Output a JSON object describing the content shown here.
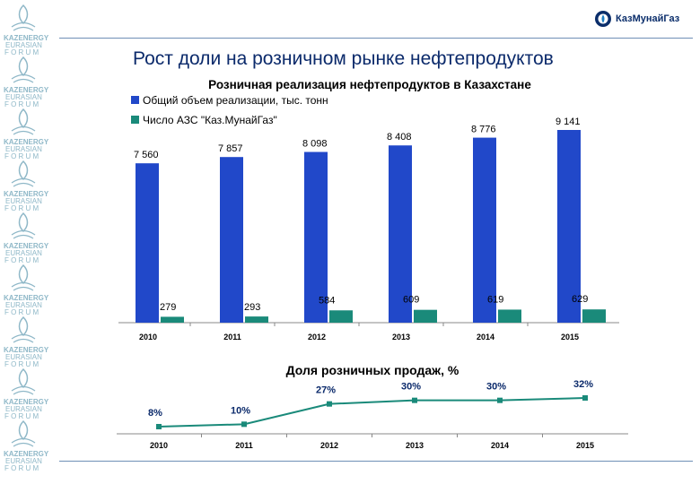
{
  "page": {
    "title": "Рост доли на розничном рынке нефтепродуктов",
    "logo_text": "КазМунайГаз",
    "sidebar_brand": [
      "KAZENERGY",
      "EURASIAN",
      "F O R U M"
    ]
  },
  "colors": {
    "bar_primary": "#2148c9",
    "bar_secondary": "#1a8a7a",
    "line": "#1a8a7a",
    "title": "#0b2a6b"
  },
  "chart_data": [
    {
      "type": "bar",
      "title": "Розничная реализация нефтепродуктов в Казахстане",
      "categories": [
        "2010",
        "2011",
        "2012",
        "2013",
        "2014",
        "2015"
      ],
      "series": [
        {
          "name": "Общий объем реализации, тыс. тонн",
          "values": [
            7560,
            7857,
            8098,
            8408,
            8776,
            9141
          ],
          "labels": [
            "7 560",
            "7 857",
            "8 098",
            "8 408",
            "8 776",
            "9 141"
          ]
        },
        {
          "name": "Число АЗС \"Каз.МунайГаз\"",
          "values": [
            279,
            293,
            584,
            609,
            619,
            629
          ],
          "labels": [
            "279",
            "293",
            "584",
            "609",
            "619",
            "629"
          ]
        }
      ],
      "legend": "top-left",
      "grid": false
    },
    {
      "type": "line",
      "title": "Доля розничных продаж, %",
      "categories": [
        "2010",
        "2011",
        "2012",
        "2013",
        "2014",
        "2015"
      ],
      "values": [
        8,
        10,
        27,
        30,
        30,
        32
      ],
      "labels": [
        "8%",
        "10%",
        "27%",
        "30%",
        "30%",
        "32%"
      ],
      "grid": false
    }
  ]
}
